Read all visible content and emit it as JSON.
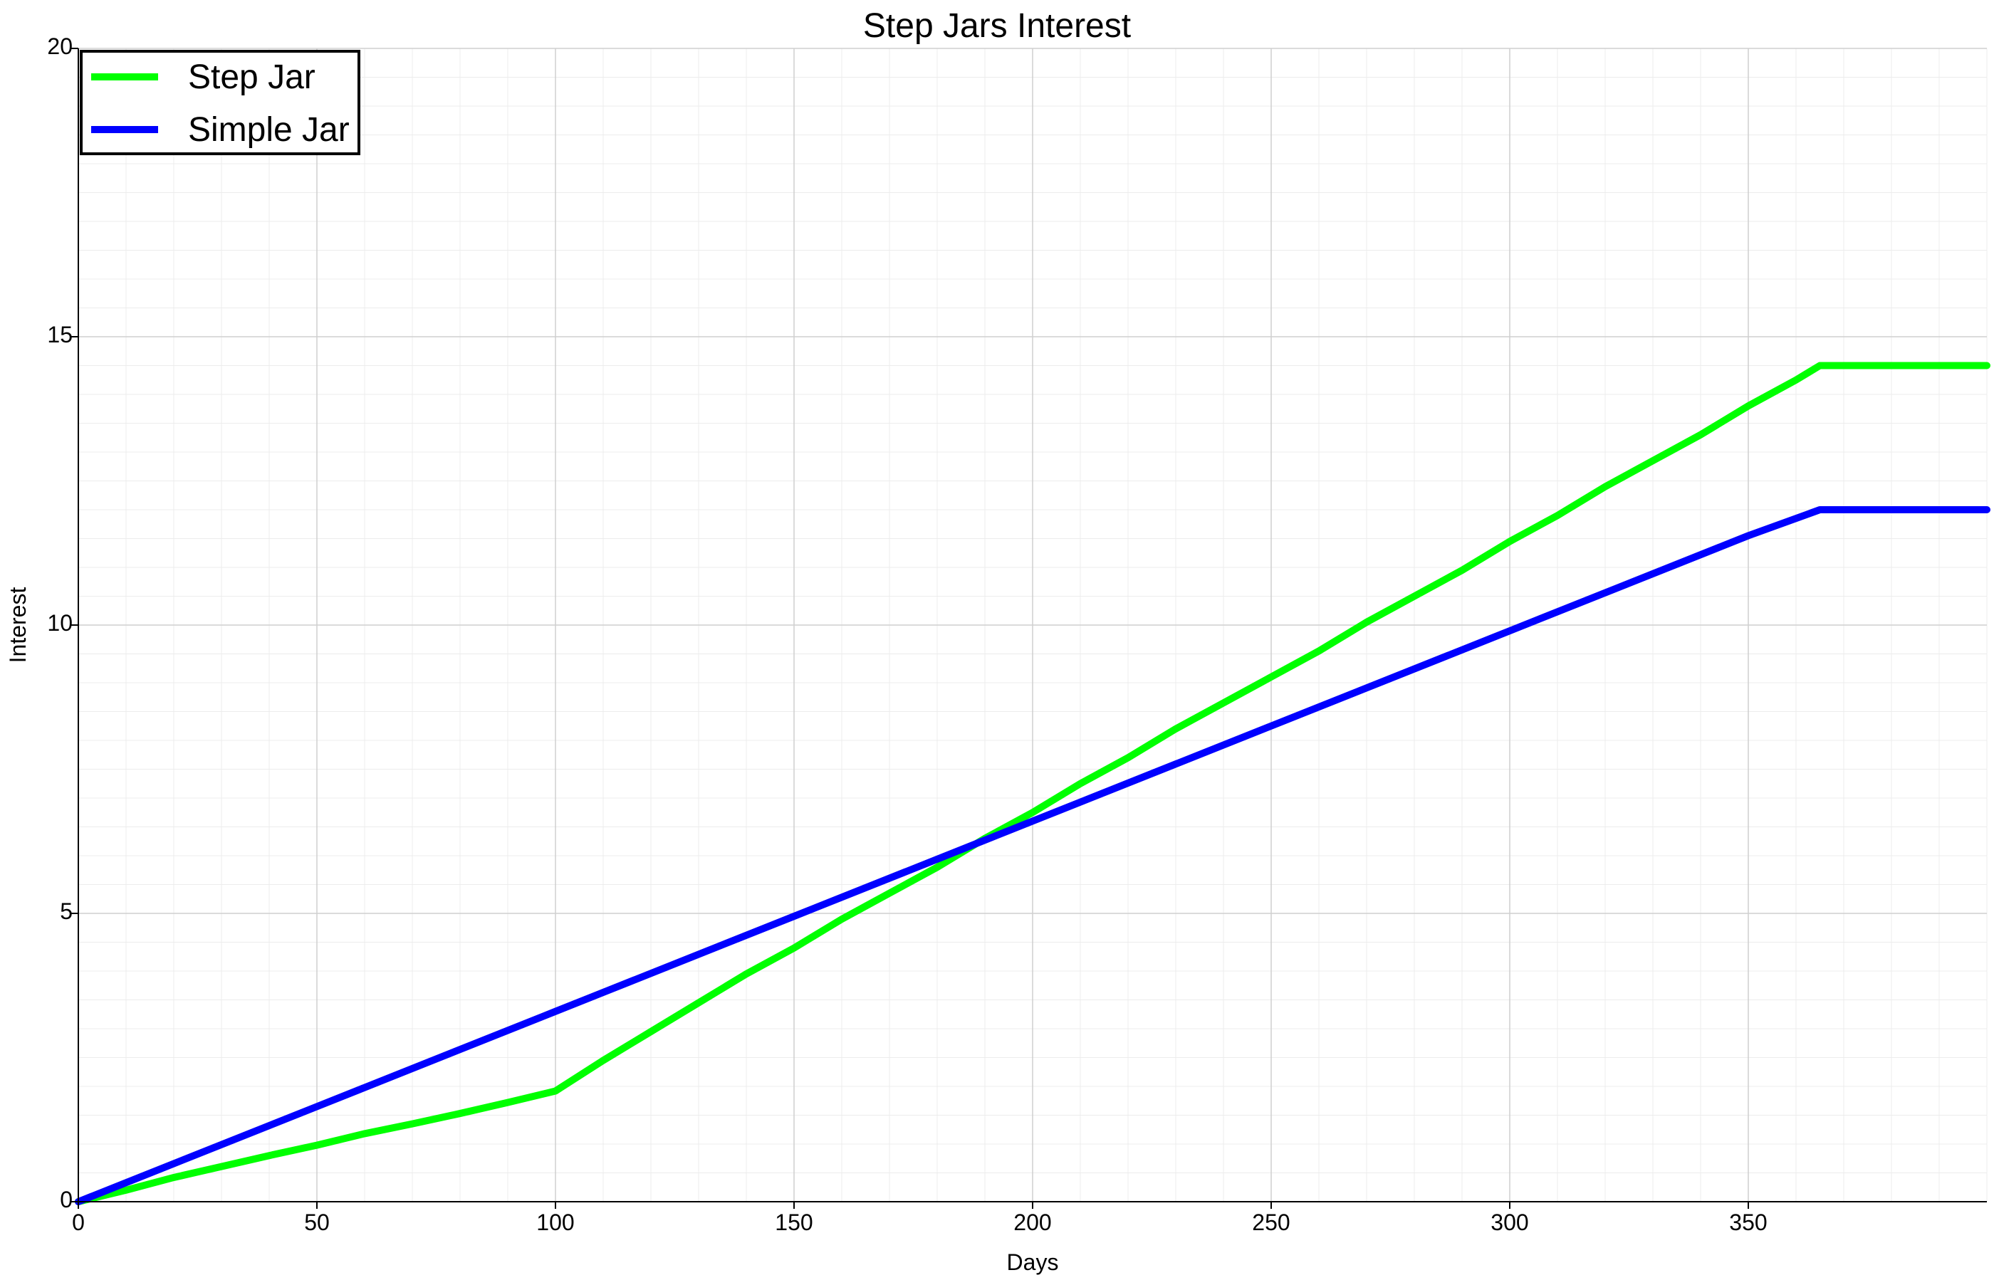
{
  "chart_data": {
    "type": "line",
    "title": "Step Jars Interest",
    "xlabel": "Days",
    "ylabel": "Interest",
    "xlim": [
      0,
      400
    ],
    "ylim": [
      0,
      20
    ],
    "x_ticks": [
      0,
      50,
      100,
      150,
      200,
      250,
      300,
      350
    ],
    "y_ticks": [
      0,
      5,
      10,
      15,
      20
    ],
    "grid": true,
    "legend_position": "top-left",
    "series": [
      {
        "name": "Step Jar",
        "color": "#00ff00",
        "x": [
          0,
          10,
          20,
          30,
          40,
          50,
          60,
          70,
          80,
          90,
          100,
          110,
          120,
          130,
          140,
          150,
          160,
          170,
          180,
          185,
          190,
          200,
          210,
          220,
          230,
          240,
          250,
          260,
          270,
          280,
          290,
          300,
          310,
          320,
          330,
          340,
          350,
          360,
          365,
          380,
          400
        ],
        "y": [
          0,
          0.2,
          0.42,
          0.61,
          0.8,
          0.98,
          1.18,
          1.35,
          1.53,
          1.72,
          1.92,
          2.45,
          2.95,
          3.45,
          3.95,
          4.4,
          4.9,
          5.35,
          5.8,
          6.05,
          6.3,
          6.75,
          7.25,
          7.7,
          8.2,
          8.65,
          9.1,
          9.55,
          10.05,
          10.5,
          10.95,
          11.45,
          11.9,
          12.4,
          12.85,
          13.3,
          13.8,
          14.25,
          14.5,
          14.5,
          14.5
        ]
      },
      {
        "name": "Simple Jar",
        "color": "#0000ff",
        "x": [
          0,
          50,
          100,
          150,
          200,
          250,
          300,
          350,
          365,
          380,
          400
        ],
        "y": [
          0,
          1.65,
          3.3,
          4.95,
          6.6,
          8.25,
          9.9,
          11.55,
          12.0,
          12.0,
          12.0
        ]
      }
    ]
  }
}
